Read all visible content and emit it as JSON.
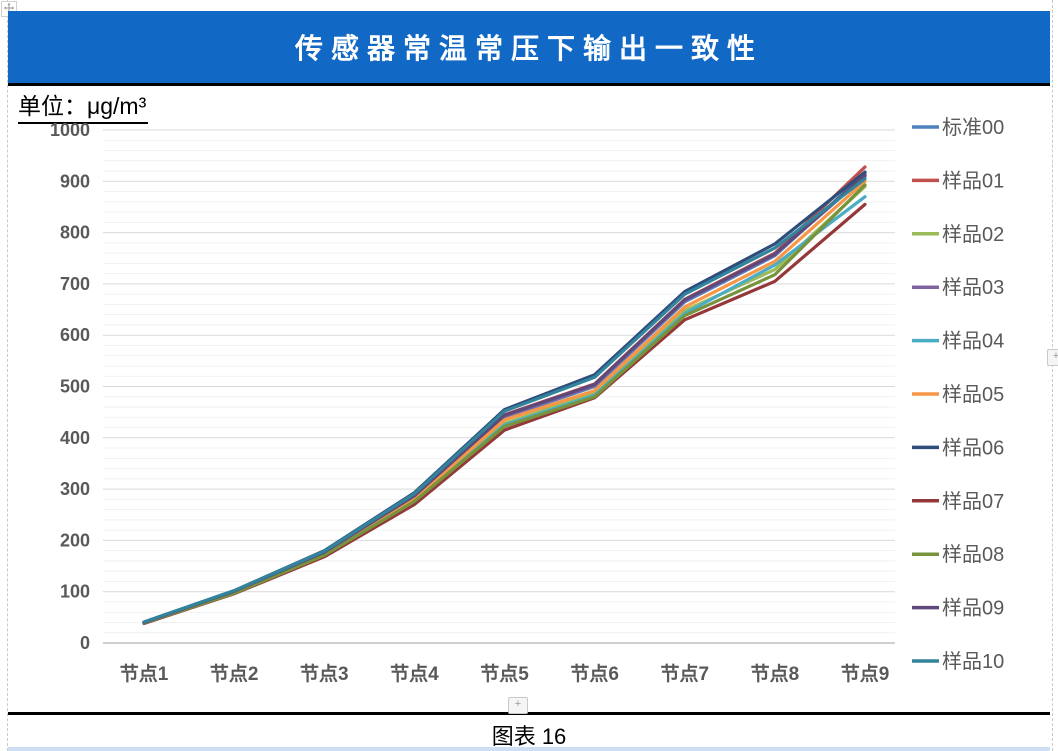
{
  "header": {
    "title": "传感器常温常压下输出一致性"
  },
  "unit_label": "单位：μg/m³",
  "caption": "图表 16",
  "handles": {
    "plus": "+"
  },
  "colors": {
    "banner_blue": "#1269C5",
    "bottom_strip_blue": "#CEDFF3",
    "axis_text": "#595959",
    "major_gridline": "#D9D9D9",
    "minor_gridline": "#F1F1F1",
    "axis_line": "#BFBFBF"
  },
  "chart_data": {
    "type": "line",
    "title": "传感器常温常压下输出一致性",
    "unit": "μg/m³",
    "xlabel": "",
    "ylabel": "",
    "ylim": [
      0,
      1000
    ],
    "ytick_step": 100,
    "minor_gridline_step": 20,
    "grid": true,
    "legend_position": "right",
    "categories": [
      "节点1",
      "节点2",
      "节点3",
      "节点4",
      "节点5",
      "节点6",
      "节点7",
      "节点8",
      "节点9"
    ],
    "yticks": [
      0,
      100,
      200,
      300,
      400,
      500,
      600,
      700,
      800,
      900,
      1000
    ],
    "series": [
      {
        "name": "标准00",
        "color": "#4F81BD",
        "values": [
          40,
          100,
          175,
          285,
          440,
          500,
          665,
          755,
          915
        ]
      },
      {
        "name": "样品01",
        "color": "#C0504D",
        "values": [
          40,
          100,
          178,
          288,
          445,
          505,
          670,
          760,
          928
        ]
      },
      {
        "name": "样品02",
        "color": "#9BBB59",
        "values": [
          39,
          98,
          172,
          278,
          428,
          487,
          648,
          728,
          890
        ]
      },
      {
        "name": "样品03",
        "color": "#8064A2",
        "values": [
          40,
          100,
          176,
          286,
          442,
          502,
          668,
          757,
          910
        ]
      },
      {
        "name": "样品04",
        "color": "#4BACC6",
        "values": [
          39,
          97,
          170,
          275,
          425,
          483,
          642,
          737,
          870
        ]
      },
      {
        "name": "样品05",
        "color": "#F79646",
        "values": [
          40,
          99,
          174,
          282,
          435,
          492,
          655,
          744,
          900
        ]
      },
      {
        "name": "样品06",
        "color": "#2E4D7B",
        "values": [
          41,
          102,
          180,
          293,
          455,
          523,
          685,
          778,
          918
        ]
      },
      {
        "name": "样品07",
        "color": "#95383A",
        "values": [
          38,
          96,
          168,
          270,
          415,
          478,
          630,
          705,
          855
        ]
      },
      {
        "name": "样品08",
        "color": "#77933C",
        "values": [
          39,
          97,
          171,
          276,
          422,
          480,
          638,
          718,
          893
        ]
      },
      {
        "name": "样品09",
        "color": "#5F497A",
        "values": [
          40,
          101,
          177,
          287,
          444,
          504,
          669,
          758,
          912
        ]
      },
      {
        "name": "样品10",
        "color": "#31849B",
        "values": [
          41,
          102,
          179,
          291,
          452,
          518,
          680,
          770,
          905
        ]
      }
    ]
  }
}
